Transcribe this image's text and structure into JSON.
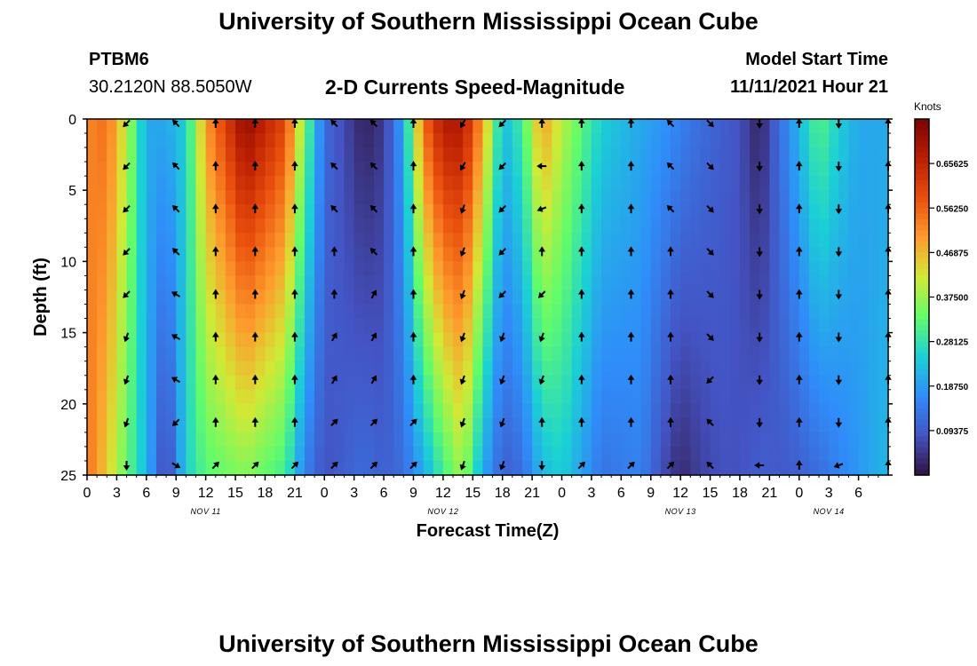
{
  "header": {
    "title": "University of Southern Mississippi Ocean Cube",
    "station": "PTBM6",
    "coords": "30.2120N  88.5050W",
    "plot_title": "2-D Currents Speed-Magnitude",
    "model_start_label": "Model Start Time",
    "model_start_value": "11/11/2021 Hour 21"
  },
  "footer": {
    "title": "University of Southern Mississippi Ocean Cube"
  },
  "colorbar": {
    "unit": "Knots",
    "ticks": [
      "0.65625",
      "0.56250",
      "0.46875",
      "0.37500",
      "0.28125",
      "0.18750",
      "0.09375"
    ],
    "tick_values": [
      0.65625,
      0.5625,
      0.46875,
      0.375,
      0.28125,
      0.1875,
      0.09375
    ],
    "min": 0.0,
    "max": 0.75,
    "colors": [
      "#30123b",
      "#4454c4",
      "#2f8dfa",
      "#1bd0d5",
      "#62fc6b",
      "#d2e935",
      "#fe9b2d",
      "#ea4f0d",
      "#ba1e02",
      "#7a0403"
    ]
  },
  "chart_data": {
    "type": "heatmap",
    "title": "2-D Currents Speed-Magnitude",
    "xlabel": "Forecast Time(Z)",
    "ylabel": "Depth (ft)",
    "x_range_hours": [
      0,
      81
    ],
    "ylim": [
      0,
      25
    ],
    "y_ticks": [
      0,
      5,
      10,
      15,
      20,
      25
    ],
    "x_tick_labels": [
      "0",
      "3",
      "6",
      "9",
      "12",
      "15",
      "18",
      "21",
      "0",
      "3",
      "6",
      "9",
      "12",
      "15",
      "18",
      "21",
      "0",
      "3",
      "6",
      "9",
      "12",
      "15",
      "18",
      "21",
      "0",
      "3",
      "6"
    ],
    "day_labels": [
      {
        "label": "NOV 11",
        "hour": 12
      },
      {
        "label": "NOV 12",
        "hour": 36
      },
      {
        "label": "NOV 13",
        "hour": 60
      },
      {
        "label": "NOV 14",
        "hour": 75
      }
    ],
    "speed_profile": {
      "unit": "knots",
      "anchors": [
        {
          "hour": 0,
          "top": 0.52,
          "bottom": 0.55
        },
        {
          "hour": 2,
          "top": 0.55,
          "bottom": 0.45
        },
        {
          "hour": 4,
          "top": 0.4,
          "bottom": 0.33
        },
        {
          "hour": 6,
          "top": 0.2,
          "bottom": 0.22
        },
        {
          "hour": 8,
          "top": 0.2,
          "bottom": 0.05
        },
        {
          "hour": 10,
          "top": 0.25,
          "bottom": 0.25
        },
        {
          "hour": 12,
          "top": 0.5,
          "bottom": 0.32
        },
        {
          "hour": 16,
          "top": 0.72,
          "bottom": 0.36
        },
        {
          "hour": 20,
          "top": 0.6,
          "bottom": 0.3
        },
        {
          "hour": 22,
          "top": 0.35,
          "bottom": 0.15
        },
        {
          "hour": 24,
          "top": 0.12,
          "bottom": 0.08
        },
        {
          "hour": 28,
          "top": 0.02,
          "bottom": 0.12
        },
        {
          "hour": 30,
          "top": 0.05,
          "bottom": 0.1
        },
        {
          "hour": 32,
          "top": 0.2,
          "bottom": 0.12
        },
        {
          "hour": 34,
          "top": 0.55,
          "bottom": 0.2
        },
        {
          "hour": 36,
          "top": 0.68,
          "bottom": 0.3
        },
        {
          "hour": 38,
          "top": 0.68,
          "bottom": 0.38
        },
        {
          "hour": 40,
          "top": 0.5,
          "bottom": 0.2
        },
        {
          "hour": 42,
          "top": 0.22,
          "bottom": 0.1
        },
        {
          "hour": 44,
          "top": 0.3,
          "bottom": 0.12
        },
        {
          "hour": 46,
          "top": 0.5,
          "bottom": 0.22
        },
        {
          "hour": 48,
          "top": 0.4,
          "bottom": 0.25
        },
        {
          "hour": 52,
          "top": 0.25,
          "bottom": 0.13
        },
        {
          "hour": 56,
          "top": 0.2,
          "bottom": 0.15
        },
        {
          "hour": 58,
          "top": 0.18,
          "bottom": 0.08
        },
        {
          "hour": 60,
          "top": 0.15,
          "bottom": 0.03
        },
        {
          "hour": 62,
          "top": 0.12,
          "bottom": 0.06
        },
        {
          "hour": 64,
          "top": 0.1,
          "bottom": 0.08
        },
        {
          "hour": 66,
          "top": 0.08,
          "bottom": 0.08
        },
        {
          "hour": 68,
          "top": 0.02,
          "bottom": 0.1
        },
        {
          "hour": 70,
          "top": 0.12,
          "bottom": 0.09
        },
        {
          "hour": 72,
          "top": 0.22,
          "bottom": 0.1
        },
        {
          "hour": 74,
          "top": 0.32,
          "bottom": 0.12
        },
        {
          "hour": 76,
          "top": 0.25,
          "bottom": 0.15
        },
        {
          "hour": 78,
          "top": 0.2,
          "bottom": 0.18
        },
        {
          "hour": 81,
          "top": 0.2,
          "bottom": 0.22
        }
      ]
    },
    "vectors": {
      "hours": [
        4,
        9,
        13,
        17,
        21,
        25,
        29,
        33,
        38,
        42,
        46,
        50,
        55,
        59,
        63,
        68,
        72,
        76,
        81
      ],
      "depths": [
        0,
        3,
        6,
        9,
        12,
        15,
        18,
        21,
        24
      ],
      "directions_deg": [
        [
          225,
          315,
          0,
          0,
          0,
          315,
          315,
          0,
          210,
          225,
          0,
          0,
          0,
          315,
          135,
          180,
          0,
          180,
          0
        ],
        [
          225,
          315,
          0,
          0,
          0,
          315,
          315,
          0,
          210,
          225,
          270,
          0,
          0,
          315,
          135,
          180,
          0,
          180,
          0
        ],
        [
          225,
          315,
          0,
          0,
          0,
          315,
          315,
          0,
          200,
          225,
          250,
          0,
          0,
          315,
          135,
          180,
          0,
          180,
          0
        ],
        [
          225,
          315,
          0,
          0,
          0,
          0,
          315,
          0,
          200,
          225,
          0,
          0,
          0,
          0,
          135,
          180,
          0,
          180,
          0
        ],
        [
          225,
          300,
          0,
          0,
          0,
          0,
          30,
          0,
          200,
          225,
          225,
          0,
          0,
          0,
          135,
          180,
          0,
          180,
          0
        ],
        [
          200,
          300,
          0,
          0,
          0,
          30,
          30,
          0,
          200,
          200,
          200,
          0,
          0,
          0,
          135,
          180,
          0,
          180,
          0
        ],
        [
          200,
          300,
          0,
          0,
          0,
          30,
          30,
          0,
          200,
          200,
          200,
          0,
          0,
          0,
          225,
          180,
          0,
          180,
          0
        ],
        [
          200,
          225,
          0,
          0,
          0,
          45,
          45,
          45,
          200,
          200,
          0,
          0,
          0,
          0,
          315,
          180,
          0,
          180,
          0
        ],
        [
          180,
          120,
          45,
          45,
          45,
          45,
          45,
          45,
          200,
          200,
          180,
          45,
          45,
          45,
          315,
          270,
          0,
          250,
          0
        ]
      ]
    }
  }
}
